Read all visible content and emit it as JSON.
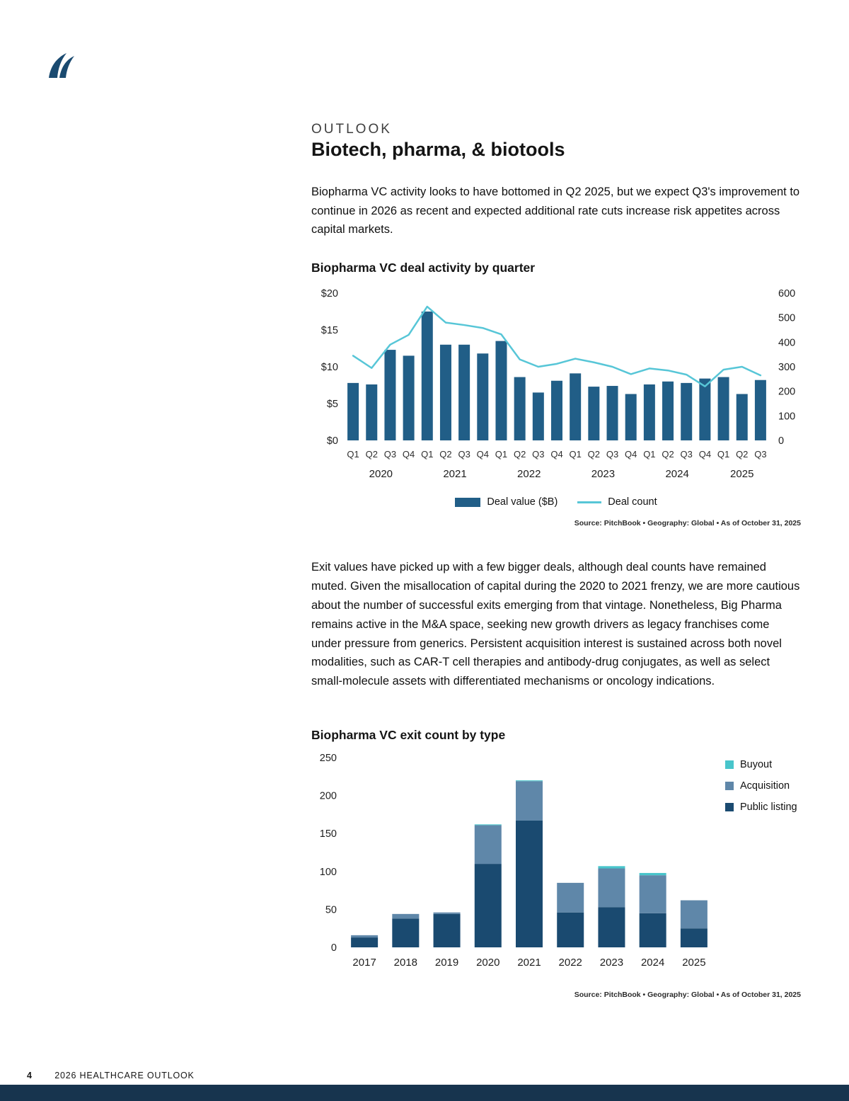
{
  "page": {
    "eyebrow": "OUTLOOK",
    "title": "Biotech, pharma, & biotools",
    "intro": "Biopharma VC activity looks to have bottomed in Q2 2025, but we expect Q3's improvement to continue in 2026 as recent and expected additional rate cuts increase risk appetites across capital markets.",
    "body": "Exit values have picked up with a few bigger deals, although deal counts have remained muted. Given the misallocation of capital during the 2020 to 2021 frenzy, we are more cautious about the number of successful exits emerging from that vintage. Nonetheless, Big Pharma remains active in the M&A space, seeking new growth drivers as legacy franchises come under pressure from generics. Persistent acquisition interest is sustained across both novel modalities, such as CAR-T cell therapies and antibody-drug conjugates, as well as select small-molecule assets with differentiated mechanisms or oncology indications.",
    "source": "Source: PitchBook  •  Geography: Global  •  As of October 31, 2025",
    "footer": {
      "page_number": "4",
      "text": "2026 HEALTHCARE OUTLOOK"
    }
  },
  "colors": {
    "bar_navy": "#215e87",
    "line_teal": "#57c6d7",
    "public_listing": "#1a4a70",
    "acquisition": "#5f87a9",
    "buyout": "#48c5cb",
    "footer_bar": "#17344e",
    "logo_navy": "#1a4a70"
  },
  "chart_data": [
    {
      "type": "bar",
      "title": "Biopharma VC deal activity by quarter",
      "legend": {
        "bars": "Deal value ($B)",
        "line": "Deal count"
      },
      "left_axis": {
        "max": 20,
        "ticks": [
          {
            "label": "$20",
            "value": 20
          },
          {
            "label": "$15",
            "value": 15
          },
          {
            "label": "$10",
            "value": 10
          },
          {
            "label": "$5",
            "value": 5
          },
          {
            "label": "$0",
            "value": 0
          }
        ]
      },
      "right_axis": {
        "max": 600,
        "ticks": [
          {
            "label": "600",
            "value": 600
          },
          {
            "label": "500",
            "value": 500
          },
          {
            "label": "400",
            "value": 400
          },
          {
            "label": "300",
            "value": 300
          },
          {
            "label": "200",
            "value": 200
          },
          {
            "label": "100",
            "value": 100
          },
          {
            "label": "0",
            "value": 0
          }
        ]
      },
      "years": [
        {
          "label": "2020",
          "quarters": [
            "Q1",
            "Q2",
            "Q3",
            "Q4"
          ]
        },
        {
          "label": "2021",
          "quarters": [
            "Q1",
            "Q2",
            "Q3",
            "Q4"
          ]
        },
        {
          "label": "2022",
          "quarters": [
            "Q1",
            "Q2",
            "Q3",
            "Q4"
          ]
        },
        {
          "label": "2023",
          "quarters": [
            "Q1",
            "Q2",
            "Q3",
            "Q4"
          ]
        },
        {
          "label": "2024",
          "quarters": [
            "Q1",
            "Q2",
            "Q3",
            "Q4"
          ]
        },
        {
          "label": "2025",
          "quarters": [
            "Q1",
            "Q2",
            "Q3"
          ]
        }
      ],
      "series": [
        {
          "name": "Deal value ($B)",
          "axis": "left",
          "values": [
            7.8,
            7.6,
            12.3,
            11.5,
            17.5,
            13.0,
            13.0,
            11.8,
            13.5,
            8.6,
            6.5,
            8.1,
            9.1,
            7.3,
            7.4,
            6.3,
            7.6,
            8.0,
            7.8,
            8.4,
            8.6,
            6.3,
            8.2
          ]
        },
        {
          "name": "Deal count",
          "axis": "right",
          "values": [
            345,
            295,
            390,
            430,
            545,
            480,
            470,
            458,
            432,
            330,
            300,
            312,
            333,
            318,
            300,
            270,
            293,
            285,
            268,
            220,
            288,
            300,
            265
          ]
        }
      ],
      "source": "Source: PitchBook  •  Geography: Global  •  As of October 31, 2025"
    },
    {
      "type": "bar",
      "title": "Biopharma VC exit count by type",
      "stacked": true,
      "categories": [
        "2017",
        "2018",
        "2019",
        "2020",
        "2021",
        "2022",
        "2023",
        "2024",
        "2025"
      ],
      "y_axis": {
        "max": 250,
        "ticks": [
          {
            "label": "250",
            "value": 250
          },
          {
            "label": "200",
            "value": 200
          },
          {
            "label": "150",
            "value": 150
          },
          {
            "label": "100",
            "value": 100
          },
          {
            "label": "50",
            "value": 50
          },
          {
            "label": "0",
            "value": 0
          }
        ]
      },
      "series": [
        {
          "name": "Public listing",
          "color_key": "public_listing",
          "values": [
            13,
            38,
            44,
            110,
            167,
            46,
            53,
            45,
            25
          ]
        },
        {
          "name": "Acquisition",
          "color_key": "acquisition",
          "values": [
            3,
            6,
            2,
            51,
            52,
            39,
            51,
            50,
            37
          ]
        },
        {
          "name": "Buyout",
          "color_key": "buyout",
          "values": [
            0,
            0,
            0,
            1,
            1,
            0,
            3,
            3,
            0
          ]
        }
      ],
      "source": "Source: PitchBook  •  Geography: Global  •  As of October 31, 2025"
    }
  ]
}
